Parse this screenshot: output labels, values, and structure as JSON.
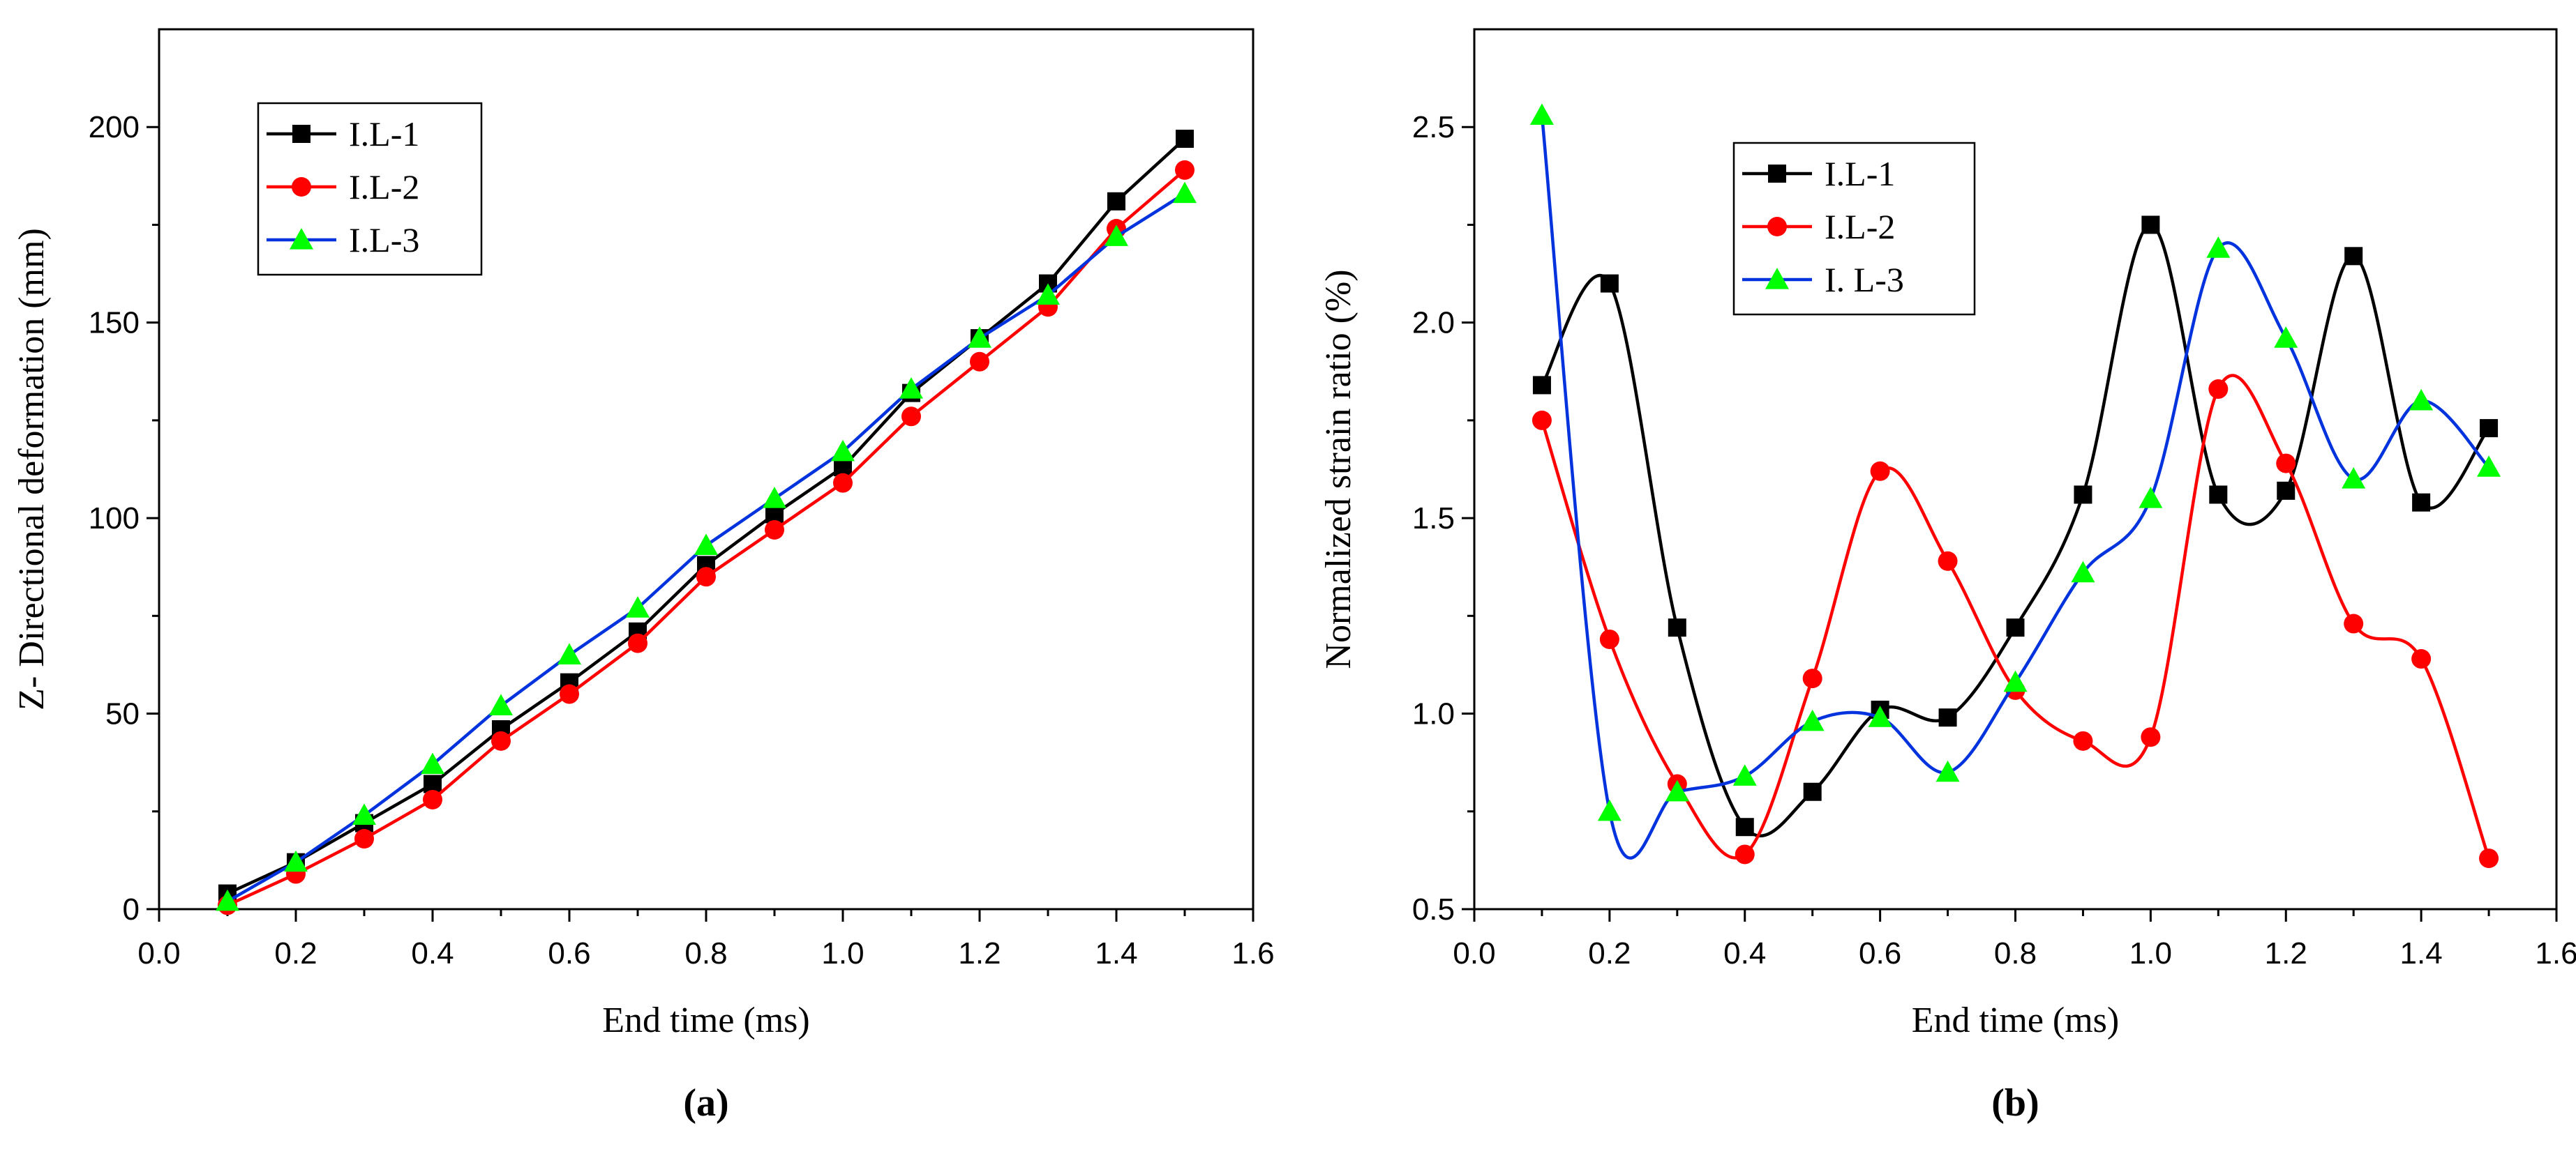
{
  "chart_data": [
    {
      "type": "line",
      "panel_label": "(a)",
      "xlabel": "End time (ms)",
      "ylabel": "Z- Directional deformation (mm)",
      "xlim": [
        0.0,
        1.6
      ],
      "ylim": [
        0,
        225
      ],
      "xticks": [
        0.0,
        0.2,
        0.4,
        0.6,
        0.8,
        1.0,
        1.2,
        1.4,
        1.6
      ],
      "xtick_labels": [
        "0.0",
        "0.2",
        "0.4",
        "0.6",
        "0.8",
        "1.0",
        "1.2",
        "1.4",
        "1.6"
      ],
      "yticks": [
        0,
        50,
        100,
        150,
        200
      ],
      "ytick_labels": [
        "0",
        "50",
        "100",
        "150",
        "200"
      ],
      "legend_position": "top-left",
      "smooth": false,
      "x": [
        0.1,
        0.2,
        0.3,
        0.4,
        0.5,
        0.6,
        0.7,
        0.8,
        0.9,
        1.0,
        1.1,
        1.2,
        1.3,
        1.4,
        1.5
      ],
      "series": [
        {
          "name": "I.L-1",
          "color": "#000000",
          "marker": "square",
          "values": [
            4,
            12,
            22,
            32,
            46,
            58,
            71,
            88,
            101,
            113,
            132,
            146,
            160,
            181,
            197
          ]
        },
        {
          "name": "I.L-2",
          "color": "#ff0000",
          "marker": "circle",
          "values": [
            1,
            9,
            18,
            28,
            43,
            55,
            68,
            85,
            97,
            109,
            126,
            140,
            154,
            174,
            189
          ]
        },
        {
          "name": "I.L-3",
          "color": "#0033dd",
          "marker": "triangle",
          "marker_color": "#00ff00",
          "values": [
            2,
            12,
            24,
            37,
            52,
            65,
            77,
            93,
            105,
            117,
            133,
            146,
            157,
            172,
            183
          ]
        }
      ]
    },
    {
      "type": "line",
      "panel_label": "(b)",
      "xlabel": "End time (ms)",
      "ylabel": "Normalized strain ratio (%)",
      "xlim": [
        0.0,
        1.6
      ],
      "ylim": [
        0.5,
        2.75
      ],
      "xticks": [
        0.0,
        0.2,
        0.4,
        0.6,
        0.8,
        1.0,
        1.2,
        1.4,
        1.6
      ],
      "xtick_labels": [
        "0.0",
        "0.2",
        "0.4",
        "0.6",
        "0.8",
        "1.0",
        "1.2",
        "1.4",
        "1.6"
      ],
      "yticks": [
        0.5,
        1.0,
        1.5,
        2.0,
        2.5
      ],
      "ytick_labels": [
        "0.5",
        "1.0",
        "1.5",
        "2.0",
        "2.5"
      ],
      "legend_position": "top-left",
      "smooth": true,
      "x": [
        0.1,
        0.2,
        0.3,
        0.4,
        0.5,
        0.6,
        0.7,
        0.8,
        0.9,
        1.0,
        1.1,
        1.2,
        1.3,
        1.4,
        1.5
      ],
      "series": [
        {
          "name": "I.L-1",
          "color": "#000000",
          "marker": "square",
          "values": [
            1.84,
            2.1,
            1.22,
            0.71,
            0.8,
            1.01,
            0.99,
            1.22,
            1.56,
            2.25,
            1.56,
            1.57,
            2.17,
            1.54,
            1.73
          ]
        },
        {
          "name": "I.L-2",
          "color": "#ff0000",
          "marker": "circle",
          "values": [
            1.75,
            1.19,
            0.82,
            0.64,
            1.09,
            1.62,
            1.39,
            1.06,
            0.93,
            0.94,
            1.83,
            1.64,
            1.23,
            1.14,
            0.63
          ]
        },
        {
          "name": "I. L-3",
          "color": "#0033dd",
          "marker": "triangle",
          "marker_color": "#00ff00",
          "values": [
            2.53,
            0.75,
            0.8,
            0.84,
            0.98,
            0.99,
            0.85,
            1.08,
            1.36,
            1.55,
            2.19,
            1.96,
            1.6,
            1.8,
            1.63
          ]
        }
      ]
    }
  ]
}
